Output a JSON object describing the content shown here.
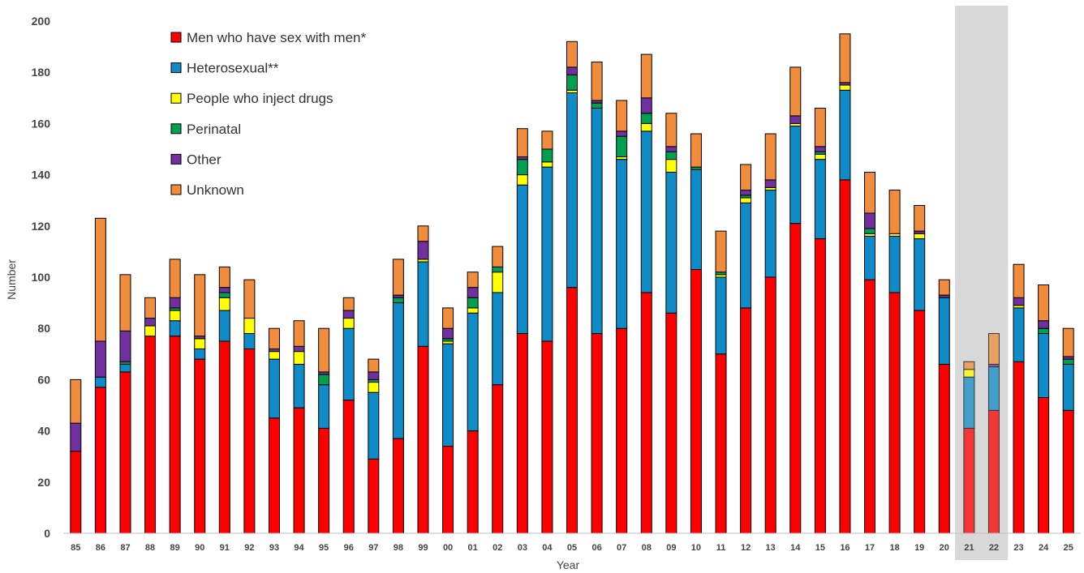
{
  "chart_data": {
    "type": "bar",
    "stacked": true,
    "xlabel": "Year",
    "ylabel": "Number",
    "ylim": [
      0,
      200
    ],
    "yticks": [
      0,
      20,
      40,
      60,
      80,
      100,
      120,
      140,
      160,
      180,
      200
    ],
    "grid": false,
    "legend_position": "top-left",
    "highlighted_categories": [
      "21",
      "22"
    ],
    "highlight_color": "#d9d9d9",
    "categories": [
      "85",
      "86",
      "87",
      "88",
      "89",
      "90",
      "91",
      "92",
      "93",
      "94",
      "95",
      "96",
      "97",
      "98",
      "99",
      "00",
      "01",
      "02",
      "03",
      "04",
      "05",
      "06",
      "07",
      "08",
      "09",
      "10",
      "11",
      "12",
      "13",
      "14",
      "15",
      "16",
      "17",
      "18",
      "19",
      "20",
      "21",
      "22",
      "23",
      "24",
      "25"
    ],
    "series": [
      {
        "name": "Men who have sex with men*",
        "color": "#ff0000",
        "values": [
          32,
          57,
          63,
          77,
          77,
          68,
          75,
          72,
          45,
          49,
          41,
          52,
          29,
          37,
          73,
          34,
          40,
          58,
          78,
          75,
          96,
          78,
          80,
          94,
          86,
          103,
          70,
          88,
          100,
          121,
          115,
          138,
          99,
          94,
          87,
          66,
          41,
          48,
          67,
          53,
          48
        ]
      },
      {
        "name": "Heterosexual**",
        "color": "#0f8cc8",
        "values": [
          0,
          4,
          3,
          0,
          6,
          4,
          12,
          6,
          23,
          17,
          17,
          28,
          26,
          53,
          33,
          40,
          46,
          36,
          58,
          68,
          76,
          88,
          66,
          63,
          55,
          39,
          30,
          41,
          34,
          38,
          31,
          35,
          17,
          22,
          28,
          26,
          20,
          17,
          21,
          25,
          18
        ]
      },
      {
        "name": "People who inject drugs",
        "color": "#ffff00",
        "values": [
          0,
          0,
          0,
          4,
          4,
          4,
          5,
          6,
          3,
          5,
          0,
          4,
          4,
          0,
          1,
          1,
          2,
          8,
          4,
          2,
          1,
          0,
          1,
          3,
          5,
          0,
          1,
          2,
          1,
          1,
          2,
          2,
          1,
          1,
          2,
          0,
          3,
          0,
          1,
          0,
          0
        ]
      },
      {
        "name": "Perinatal",
        "color": "#00a050",
        "values": [
          0,
          0,
          1,
          0,
          1,
          0,
          2,
          0,
          0,
          0,
          4,
          0,
          1,
          2,
          0,
          1,
          4,
          2,
          6,
          5,
          6,
          2,
          8,
          4,
          3,
          1,
          1,
          1,
          0,
          0,
          1,
          0,
          2,
          0,
          0,
          0,
          0,
          0,
          0,
          2,
          2
        ]
      },
      {
        "name": "Other",
        "color": "#7030a0",
        "values": [
          11,
          14,
          12,
          3,
          4,
          1,
          2,
          0,
          1,
          2,
          1,
          3,
          3,
          1,
          7,
          4,
          4,
          0,
          1,
          0,
          3,
          1,
          2,
          6,
          2,
          0,
          0,
          2,
          3,
          3,
          2,
          1,
          6,
          0,
          1,
          1,
          0,
          1,
          3,
          3,
          1
        ]
      },
      {
        "name": "Unknown",
        "color": "#f08c3c",
        "values": [
          17,
          48,
          22,
          8,
          15,
          24,
          8,
          15,
          8,
          10,
          17,
          5,
          5,
          14,
          6,
          8,
          6,
          8,
          11,
          7,
          10,
          15,
          12,
          17,
          13,
          13,
          16,
          10,
          18,
          19,
          15,
          19,
          16,
          17,
          10,
          6,
          3,
          12,
          13,
          14,
          11
        ]
      }
    ]
  }
}
